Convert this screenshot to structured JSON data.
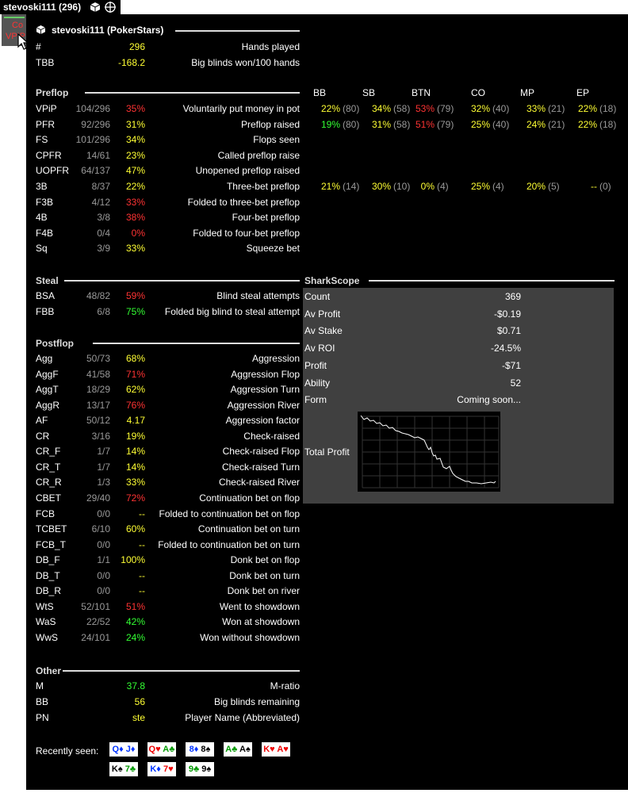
{
  "titlebar": {
    "title": "stevoski111 (296)"
  },
  "minihud": {
    "line1": "Co",
    "line2": "VPIP"
  },
  "header": {
    "player": "stevoski111 (PokerStars)"
  },
  "general": [
    {
      "abbr": "#",
      "value": "296",
      "label": "Hands played"
    },
    {
      "abbr": "TBB",
      "value": "-168.2",
      "label": "Big blinds won/100 hands"
    }
  ],
  "positions": [
    "BB",
    "SB",
    "BTN",
    "CO",
    "MP",
    "EP"
  ],
  "preflop": {
    "title": "Preflop",
    "rows": [
      {
        "abbr": "VPiP",
        "ratio": "104/296",
        "pct": "35%",
        "label": "Voluntarily put money in pot",
        "pos": [
          [
            "22%",
            "(80)"
          ],
          [
            "34%",
            "(58)"
          ],
          [
            "53%",
            "(79)"
          ],
          [
            "32%",
            "(40)"
          ],
          [
            "33%",
            "(21)"
          ],
          [
            "22%",
            "(18)"
          ]
        ]
      },
      {
        "abbr": "PFR",
        "ratio": "92/296",
        "pct": "31%",
        "label": "Preflop raised",
        "pos": [
          [
            "19%",
            "(80)"
          ],
          [
            "31%",
            "(58)"
          ],
          [
            "51%",
            "(79)"
          ],
          [
            "25%",
            "(40)"
          ],
          [
            "24%",
            "(21)"
          ],
          [
            "22%",
            "(18)"
          ]
        ]
      },
      {
        "abbr": "FS",
        "ratio": "101/296",
        "pct": "34%",
        "label": "Flops seen"
      },
      {
        "abbr": "CPFR",
        "ratio": "14/61",
        "pct": "23%",
        "label": "Called preflop raise"
      },
      {
        "abbr": "UOPFR",
        "ratio": "64/137",
        "pct": "47%",
        "label": "Unopened preflop raised"
      },
      {
        "abbr": "3B",
        "ratio": "8/37",
        "pct": "22%",
        "label": "Three-bet preflop",
        "pos": [
          [
            "21%",
            "(14)"
          ],
          [
            "30%",
            "(10)"
          ],
          [
            "0%",
            "(4)"
          ],
          [
            "25%",
            "(4)"
          ],
          [
            "20%",
            "(5)"
          ],
          [
            "--",
            "(0)"
          ]
        ]
      },
      {
        "abbr": "F3B",
        "ratio": "4/12",
        "pct": "33%",
        "label": "Folded to three-bet preflop"
      },
      {
        "abbr": "4B",
        "ratio": "3/8",
        "pct": "38%",
        "label": "Four-bet preflop"
      },
      {
        "abbr": "F4B",
        "ratio": "0/4",
        "pct": "0%",
        "label": "Folded to four-bet preflop"
      },
      {
        "abbr": "Sq",
        "ratio": "3/9",
        "pct": "33%",
        "label": "Squeeze bet"
      }
    ]
  },
  "steal": {
    "title": "Steal",
    "rows": [
      {
        "abbr": "BSA",
        "ratio": "48/82",
        "pct": "59%",
        "label": "Blind steal attempts"
      },
      {
        "abbr": "FBB",
        "ratio": "6/8",
        "pct": "75%",
        "label": "Folded big blind to steal attempt"
      }
    ]
  },
  "postflop": {
    "title": "Postflop",
    "rows": [
      {
        "abbr": "Agg",
        "ratio": "50/73",
        "pct": "68%",
        "label": "Aggression"
      },
      {
        "abbr": "AggF",
        "ratio": "41/58",
        "pct": "71%",
        "label": "Aggression Flop"
      },
      {
        "abbr": "AggT",
        "ratio": "18/29",
        "pct": "62%",
        "label": "Aggression Turn"
      },
      {
        "abbr": "AggR",
        "ratio": "13/17",
        "pct": "76%",
        "label": "Aggression River"
      },
      {
        "abbr": "AF",
        "ratio": "50/12",
        "pct": "4.17",
        "label": "Aggression factor"
      },
      {
        "abbr": "CR",
        "ratio": "3/16",
        "pct": "19%",
        "label": "Check-raised"
      },
      {
        "abbr": "CR_F",
        "ratio": "1/7",
        "pct": "14%",
        "label": "Check-raised Flop"
      },
      {
        "abbr": "CR_T",
        "ratio": "1/7",
        "pct": "14%",
        "label": "Check-raised Turn"
      },
      {
        "abbr": "CR_R",
        "ratio": "1/3",
        "pct": "33%",
        "label": "Check-raised River"
      },
      {
        "abbr": "CBET",
        "ratio": "29/40",
        "pct": "72%",
        "label": "Continuation bet on flop"
      },
      {
        "abbr": "FCB",
        "ratio": "0/0",
        "pct": "--",
        "label": "Folded to continuation bet on flop"
      },
      {
        "abbr": "TCBET",
        "ratio": "6/10",
        "pct": "60%",
        "label": "Continuation bet on turn"
      },
      {
        "abbr": "FCB_T",
        "ratio": "0/0",
        "pct": "--",
        "label": "Folded to continuation bet on turn"
      },
      {
        "abbr": "DB_F",
        "ratio": "1/1",
        "pct": "100%",
        "label": "Donk bet on flop"
      },
      {
        "abbr": "DB_T",
        "ratio": "0/0",
        "pct": "--",
        "label": "Donk bet on turn"
      },
      {
        "abbr": "DB_R",
        "ratio": "0/0",
        "pct": "--",
        "label": "Donk bet on river"
      },
      {
        "abbr": "WtS",
        "ratio": "52/101",
        "pct": "51%",
        "label": "Went to showdown"
      },
      {
        "abbr": "WaS",
        "ratio": "22/52",
        "pct": "42%",
        "label": "Won at showdown"
      },
      {
        "abbr": "WwS",
        "ratio": "24/101",
        "pct": "24%",
        "label": "Won without showdown"
      }
    ]
  },
  "other": {
    "title": "Other",
    "rows": [
      {
        "abbr": "M",
        "value": "37.8",
        "label": "M-ratio"
      },
      {
        "abbr": "BB",
        "value": "56",
        "label": "Big blinds remaining"
      },
      {
        "abbr": "PN",
        "value": "ste",
        "label": "Player Name (Abbreviated)"
      }
    ]
  },
  "sharkscope": {
    "title": "SharkScope",
    "rows": [
      {
        "label": "Count",
        "value": "369"
      },
      {
        "label": "Av Profit",
        "value": "-$0.19"
      },
      {
        "label": "Av Stake",
        "value": "$0.71"
      },
      {
        "label": "Av ROI",
        "value": "-24.5%"
      },
      {
        "label": "Profit",
        "value": "-$71"
      },
      {
        "label": "Ability",
        "value": "52"
      },
      {
        "label": "Form",
        "value": "Coming soon..."
      }
    ],
    "graph_label": "Total Profit"
  },
  "recently_seen": {
    "label": "Recently seen:",
    "hands": [
      [
        [
          "Q",
          "d"
        ],
        [
          "J",
          "d"
        ]
      ],
      [
        [
          "Q",
          "h"
        ],
        [
          "A",
          "c"
        ]
      ],
      [
        [
          "8",
          "d"
        ],
        [
          "8",
          "s"
        ]
      ],
      [
        [
          "A",
          "c"
        ],
        [
          "A",
          "s"
        ]
      ],
      [
        [
          "K",
          "h"
        ],
        [
          "A",
          "h"
        ]
      ],
      [
        [
          "K",
          "s"
        ],
        [
          "7",
          "c"
        ]
      ],
      [
        [
          "K",
          "d"
        ],
        [
          "7",
          "h"
        ]
      ],
      [
        [
          "9",
          "c"
        ],
        [
          "9",
          "s"
        ]
      ]
    ]
  },
  "colors": {
    "red": "#ff3333",
    "yellow": "#ffff33",
    "green": "#33ff33",
    "gray": "#999999",
    "panel": "#000000",
    "shark_bg": "#404040"
  }
}
